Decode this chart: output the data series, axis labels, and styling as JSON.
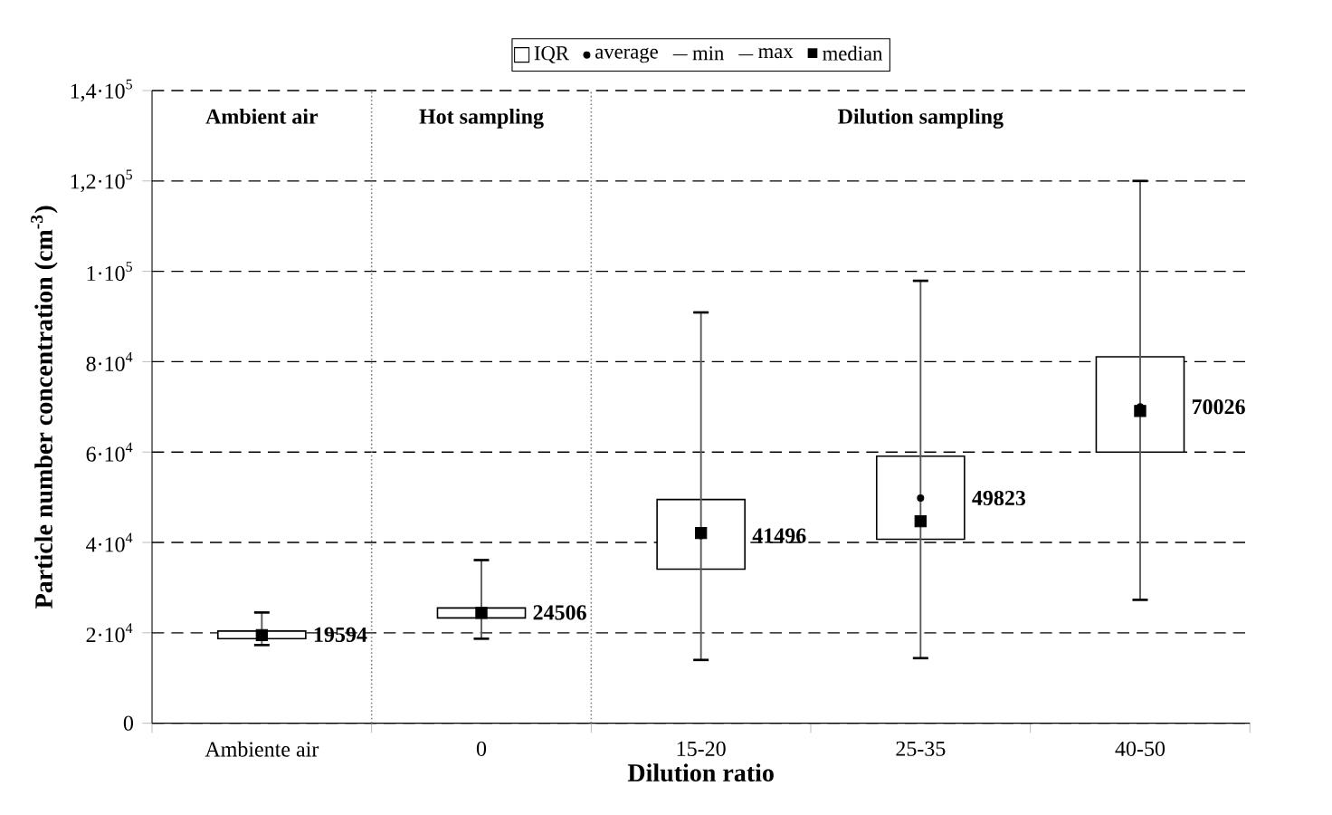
{
  "chart_data": {
    "type": "box",
    "xlabel": "Dilution ratio",
    "ylabel": "Particle number concentration (cm$^{-3}$)",
    "categories": [
      "Ambiente air",
      "0",
      "15-20",
      "25-35",
      "40-50"
    ],
    "ylim": [
      0,
      140000
    ],
    "yticks": [
      0,
      {
        "value": 20000,
        "label": "2·10$^{4}$"
      },
      {
        "value": 40000,
        "label": "4·10$^{4}$"
      },
      {
        "value": 60000,
        "label": "6·10$^{4}$"
      },
      {
        "value": 80000,
        "label": "8·10$^{4}$"
      },
      {
        "value": 100000,
        "label": "1·10$^{5}$"
      },
      {
        "value": 120000,
        "label": "1,2·10$^{5}$"
      },
      {
        "value": 140000,
        "label": "1,4·10$^{5}$"
      }
    ],
    "grid": "y",
    "legend": "top",
    "series": [
      {
        "name": "IQR",
        "color": "#000000",
        "boxes": [
          {
            "low": 17300,
            "q1": 18700,
            "median": 19500,
            "q3": 20400,
            "high": 24500
          },
          {
            "low": 18700,
            "q1": 23300,
            "median": 24400,
            "q3": 25500,
            "high": 36100
          },
          {
            "low": 14000,
            "q1": 34100,
            "median": 42100,
            "q3": 49500,
            "high": 90900,
            "mean": 41496
          },
          {
            "low": 14400,
            "q1": 40700,
            "median": 44700,
            "q3": 59100,
            "high": 97900,
            "mean": 49823
          },
          {
            "low": 27300,
            "q1": 60000,
            "median": 69100,
            "q3": 81100,
            "high": 120000,
            "mean": 70026
          }
        ]
      }
    ],
    "annotations": [
      "average",
      "min",
      "max",
      "median",
      "Ambient air",
      "Hot sampling",
      "Dilution sampling",
      {
        "text": "19594",
        "x": "Ambiente air",
        "y": 19594
      },
      {
        "text": "24506",
        "x": "0",
        "y": 24506
      },
      {
        "text": "41496",
        "x": "15-20",
        "y": 41496
      },
      {
        "text": "49823",
        "x": "25-35",
        "y": 49823
      },
      {
        "text": "70026",
        "x": "40-50",
        "y": 70026
      }
    ]
  }
}
